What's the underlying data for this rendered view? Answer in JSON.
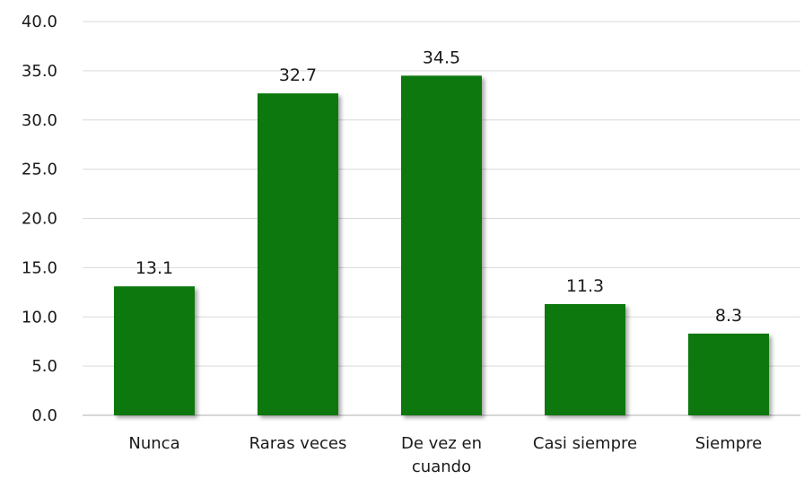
{
  "chart_data": {
    "type": "bar",
    "categories": [
      "Nunca",
      "Raras veces",
      "De vez en cuando",
      "Casi siempre",
      "Siempre"
    ],
    "category_lines": [
      [
        "Nunca"
      ],
      [
        "Raras veces"
      ],
      [
        "De vez en",
        "cuando"
      ],
      [
        "Casi siempre"
      ],
      [
        "Siempre"
      ]
    ],
    "values": [
      13.1,
      32.7,
      34.5,
      11.3,
      8.3
    ],
    "value_labels": [
      "13.1",
      "32.7",
      "34.5",
      "11.3",
      "8.3"
    ],
    "ylim": [
      0,
      40
    ],
    "yticks": [
      "0.0",
      "5.0",
      "10.0",
      "15.0",
      "20.0",
      "25.0",
      "30.0",
      "35.0",
      "40.0"
    ],
    "grid": true,
    "bar_color": "#087808",
    "title": "",
    "xlabel": "",
    "ylabel": ""
  }
}
